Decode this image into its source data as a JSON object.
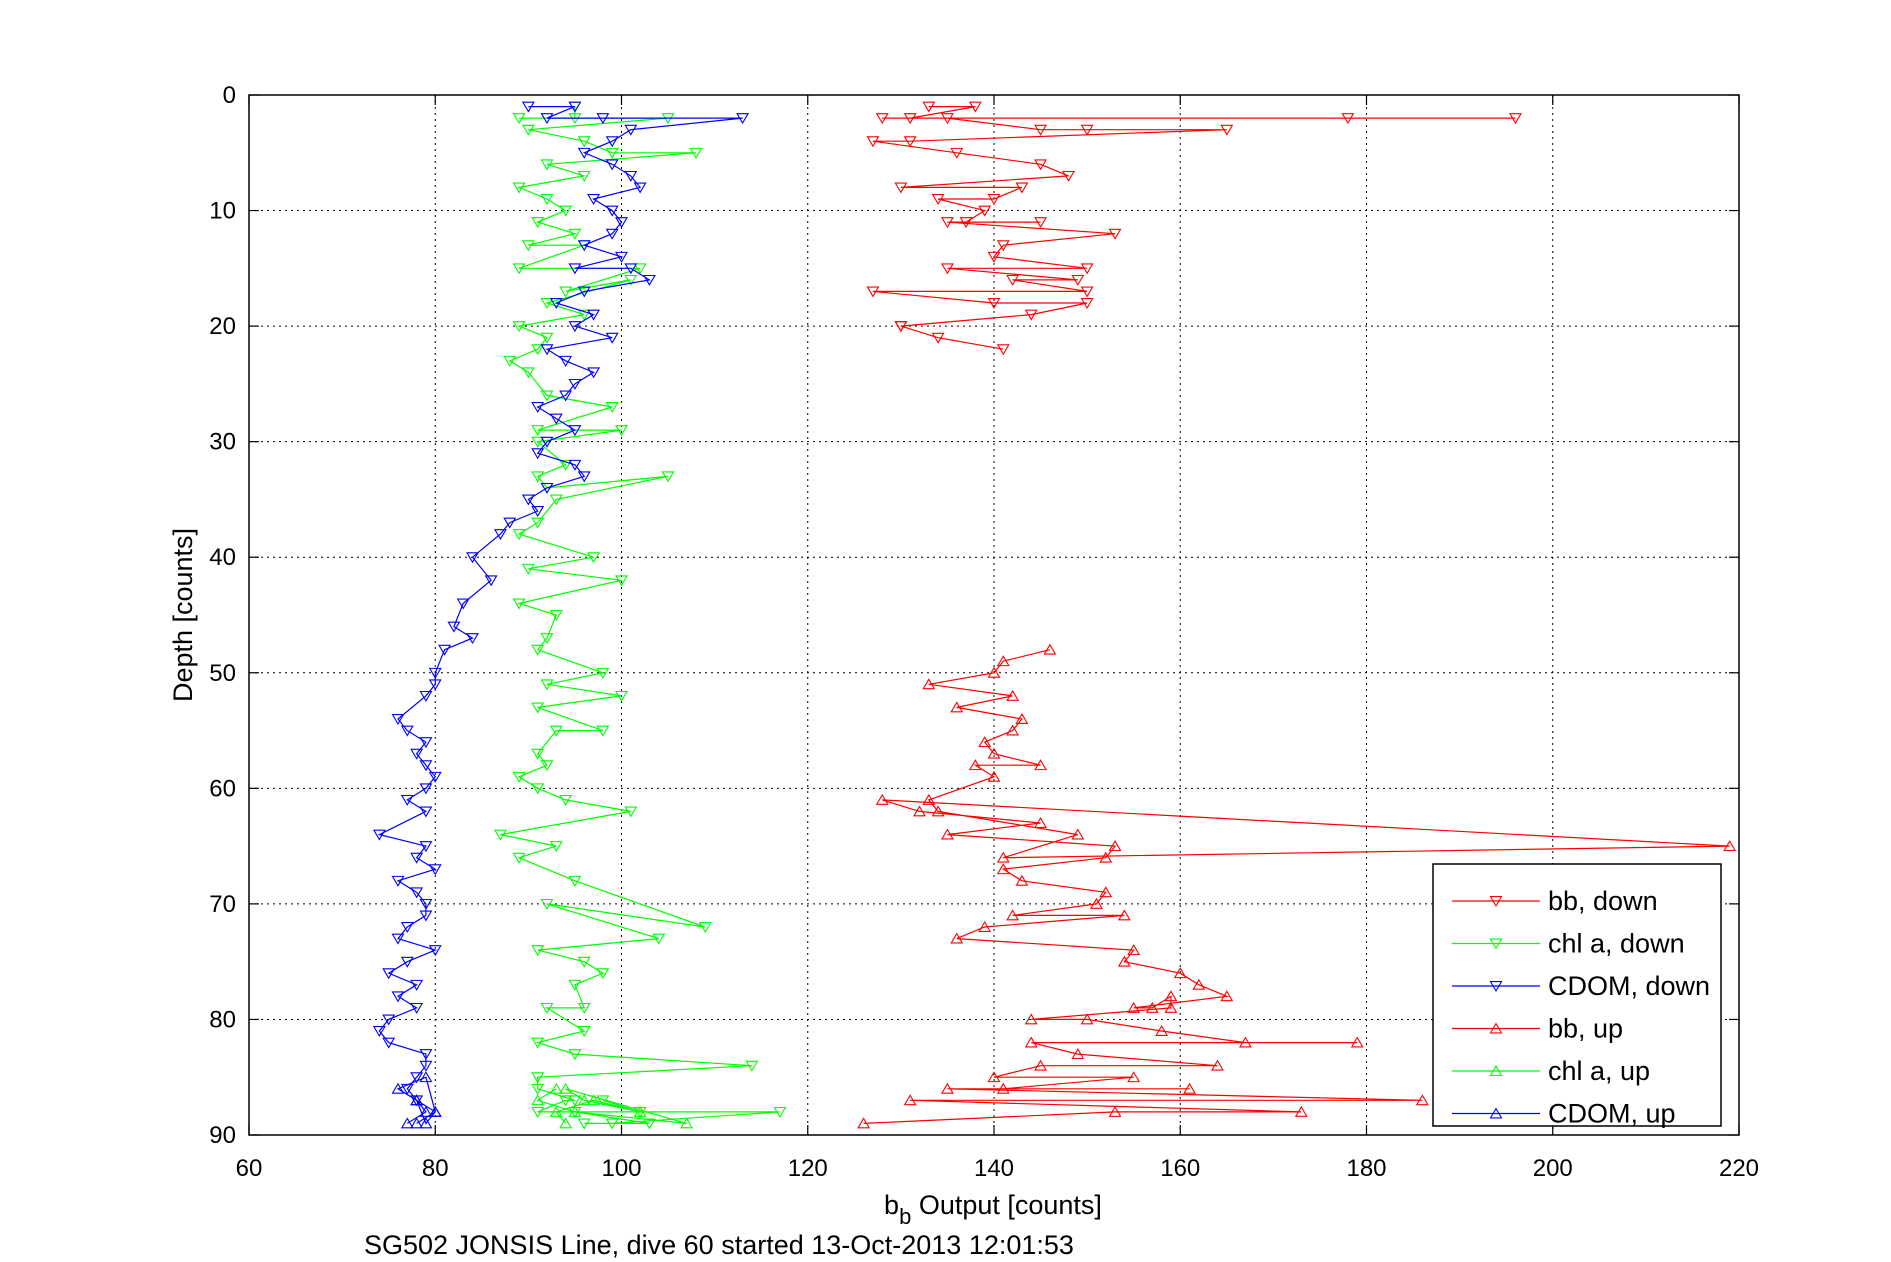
{
  "figure": {
    "caption": "SG502 JONSIS Line, dive 60 started 13-Oct-2013 12:01:53"
  },
  "chart_data": {
    "type": "line",
    "title": "",
    "xlabel": "b",
    "xlabel_subscript": "b",
    "xlabel_rest": " Output [counts]",
    "ylabel": "Depth [counts]",
    "xlim": [
      60,
      220
    ],
    "ylim": [
      0,
      90
    ],
    "y_reversed": true,
    "grid": true,
    "legend_position": "bottom-right",
    "x_ticks": [
      "60",
      "80",
      "100",
      "120",
      "140",
      "160",
      "180",
      "200",
      "220"
    ],
    "y_ticks": [
      "0",
      "10",
      "20",
      "30",
      "40",
      "50",
      "60",
      "70",
      "80",
      "90"
    ],
    "series": [
      {
        "name": "bb, down",
        "color": "#ff0000",
        "marker": "triangle-down",
        "x": [
          133,
          138,
          131,
          196,
          128,
          178,
          135,
          145,
          150,
          165,
          131,
          127,
          136,
          145,
          148,
          130,
          143,
          140,
          134,
          139,
          137,
          145,
          135,
          153,
          141,
          140,
          150,
          135,
          149,
          142,
          150,
          127,
          140,
          150,
          144,
          130,
          130,
          134,
          141
        ],
        "y": [
          1,
          1,
          2,
          2,
          2,
          2,
          2,
          3,
          3,
          3,
          4,
          4,
          5,
          6,
          7,
          8,
          8,
          9,
          9,
          10,
          11,
          11,
          11,
          12,
          13,
          14,
          15,
          15,
          16,
          16,
          17,
          17,
          18,
          18,
          19,
          20,
          20,
          21,
          22
        ]
      },
      {
        "name": "chl a, down",
        "color": "#00ff00",
        "marker": "triangle-down",
        "x": [
          95,
          95,
          89,
          105,
          90,
          96,
          99,
          108,
          92,
          96,
          89,
          92,
          94,
          91,
          95,
          90,
          96,
          89,
          102,
          94,
          101,
          92,
          96,
          89,
          92,
          91,
          88,
          90,
          92,
          99,
          91,
          100,
          91,
          94,
          91,
          92,
          105,
          93,
          91,
          89,
          97,
          90,
          100,
          89,
          93,
          92,
          91,
          98,
          92,
          100,
          91,
          98,
          93,
          91,
          92,
          89,
          91,
          94,
          101,
          87,
          93,
          89,
          95,
          109,
          92,
          104,
          91,
          96,
          98,
          95,
          96,
          92,
          96,
          91,
          95,
          114,
          91,
          91,
          95,
          94,
          91,
          117,
          99,
          96,
          103,
          95,
          102,
          98
        ],
        "y": [
          1,
          2,
          2,
          2,
          3,
          4,
          5,
          5,
          6,
          7,
          8,
          9,
          10,
          11,
          12,
          13,
          13,
          15,
          15,
          17,
          16,
          18,
          19,
          20,
          21,
          22,
          23,
          24,
          26,
          27,
          29,
          29,
          30,
          32,
          33,
          34,
          33,
          35,
          37,
          38,
          40,
          41,
          42,
          44,
          45,
          47,
          48,
          50,
          51,
          52,
          53,
          55,
          55,
          57,
          58,
          59,
          60,
          61,
          62,
          64,
          65,
          66,
          68,
          72,
          70,
          73,
          74,
          75,
          76,
          77,
          79,
          79,
          81,
          82,
          83,
          84,
          85,
          86,
          87,
          87,
          88,
          88,
          89,
          89,
          89,
          88,
          88,
          87
        ]
      },
      {
        "name": "CDOM, down",
        "color": "#0000ff",
        "marker": "triangle-down",
        "x": [
          90,
          95,
          92,
          98,
          113,
          101,
          99,
          96,
          99,
          101,
          102,
          97,
          99,
          100,
          99,
          96,
          100,
          95,
          101,
          103,
          96,
          93,
          97,
          95,
          99,
          92,
          94,
          97,
          95,
          94,
          91,
          93,
          95,
          92,
          91,
          95,
          96,
          92,
          90,
          91,
          88,
          87,
          84,
          86,
          83,
          82,
          84,
          81,
          80,
          80,
          79,
          76,
          77,
          79,
          78,
          79,
          80,
          79,
          77,
          79,
          74,
          79,
          78,
          80,
          76,
          78,
          79,
          79,
          77,
          76,
          80,
          77,
          75,
          78,
          76,
          78,
          75,
          74,
          75,
          79,
          79,
          78,
          77,
          78
        ],
        "y": [
          1,
          1,
          2,
          2,
          2,
          3,
          4,
          5,
          6,
          7,
          8,
          9,
          10,
          11,
          12,
          13,
          14,
          15,
          15,
          16,
          17,
          18,
          19,
          20,
          21,
          22,
          23,
          24,
          25,
          26,
          27,
          28,
          29,
          30,
          31,
          32,
          33,
          34,
          35,
          36,
          37,
          38,
          40,
          42,
          44,
          46,
          47,
          48,
          50,
          51,
          52,
          54,
          55,
          56,
          57,
          58,
          59,
          60,
          61,
          62,
          64,
          65,
          66,
          67,
          68,
          69,
          70,
          71,
          72,
          73,
          74,
          75,
          76,
          77,
          78,
          79,
          80,
          81,
          82,
          83,
          84,
          85,
          86,
          87
        ]
      },
      {
        "name": "bb, up",
        "color": "#ff0000",
        "marker": "triangle-up",
        "x": [
          126,
          153,
          173,
          131,
          186,
          135,
          161,
          141,
          155,
          140,
          145,
          164,
          149,
          144,
          179,
          167,
          158,
          150,
          144,
          159,
          159,
          157,
          155,
          165,
          162,
          160,
          154,
          155,
          136,
          139,
          154,
          142,
          151,
          152,
          143,
          141,
          152,
          153,
          135,
          145,
          132,
          128,
          219,
          141,
          149,
          134,
          133,
          140,
          138,
          145,
          140,
          139,
          142,
          143,
          136,
          142,
          133,
          140,
          141,
          146
        ],
        "y": [
          89,
          88,
          88,
          87,
          87,
          86,
          86,
          86,
          85,
          85,
          84,
          84,
          83,
          82,
          82,
          82,
          81,
          80,
          80,
          79,
          78,
          79,
          79,
          78,
          77,
          76,
          75,
          74,
          73,
          72,
          71,
          71,
          70,
          69,
          68,
          67,
          66,
          65,
          64,
          63,
          62,
          61,
          65,
          66,
          64,
          62,
          61,
          59,
          58,
          58,
          57,
          56,
          55,
          54,
          53,
          52,
          51,
          50,
          49,
          48
        ]
      },
      {
        "name": "chl a, up",
        "color": "#00ff00",
        "marker": "triangle-up",
        "x": [
          94,
          93,
          97,
          102,
          96,
          94,
          107,
          95,
          91,
          93
        ],
        "y": [
          89,
          88,
          87,
          88,
          87,
          86,
          89,
          88,
          87,
          86
        ]
      },
      {
        "name": "CDOM, up",
        "color": "#0000ff",
        "marker": "triangle-up",
        "x": [
          77,
          79,
          78,
          80,
          79,
          78,
          76,
          79,
          80,
          78
        ],
        "y": [
          89,
          88,
          87,
          88,
          89,
          87,
          86,
          85,
          88,
          89
        ]
      }
    ]
  }
}
